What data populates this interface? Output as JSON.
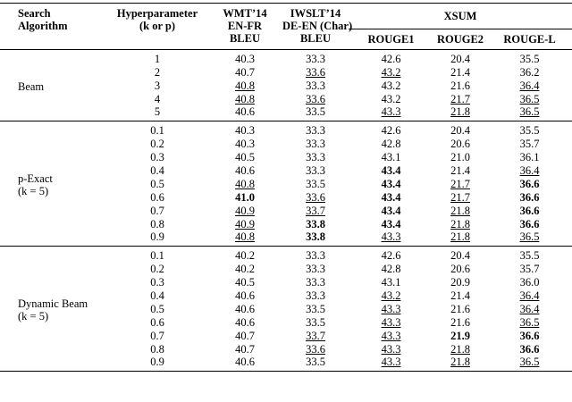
{
  "header": {
    "search_algorithm": [
      "Search",
      "Algorithm"
    ],
    "hyperparameter": [
      "Hyperparameter",
      "(k or p)"
    ],
    "wmt": [
      "WMT’14",
      "EN-FR",
      "BLEU"
    ],
    "iwslt": [
      "IWSLT’14",
      "DE-EN (Char)",
      "BLEU"
    ],
    "xsum": "XSUM",
    "metrics": [
      "ROUGE1",
      "ROUGE2",
      "ROUGE-L"
    ]
  },
  "groups": [
    {
      "name": [
        "Beam"
      ],
      "rows": [
        [
          "1",
          "40.3",
          "33.3",
          "42.6",
          "20.4",
          "35.5"
        ],
        [
          "2",
          "40.7",
          "33.6",
          "43.2",
          "21.4",
          "36.2"
        ],
        [
          "3",
          "40.8",
          "33.3",
          "43.2",
          "21.6",
          "36.4"
        ],
        [
          "4",
          "40.8",
          "33.6",
          "43.2",
          "21.7",
          "36.5"
        ],
        [
          "5",
          "40.6",
          "33.5",
          "43.3",
          "21.8",
          "36.5"
        ]
      ]
    },
    {
      "name": [
        "p-Exact",
        "(k = 5)"
      ],
      "rows": [
        [
          "0.1",
          "40.3",
          "33.3",
          "42.6",
          "20.4",
          "35.5"
        ],
        [
          "0.2",
          "40.3",
          "33.3",
          "42.8",
          "20.6",
          "35.7"
        ],
        [
          "0.3",
          "40.5",
          "33.3",
          "43.1",
          "21.0",
          "36.1"
        ],
        [
          "0.4",
          "40.6",
          "33.3",
          "43.4",
          "21.4",
          "36.4"
        ],
        [
          "0.5",
          "40.8",
          "33.5",
          "43.4",
          "21.7",
          "36.6"
        ],
        [
          "0.6",
          "41.0",
          "33.6",
          "43.4",
          "21.7",
          "36.6"
        ],
        [
          "0.7",
          "40.9",
          "33.7",
          "43.4",
          "21.8",
          "36.6"
        ],
        [
          "0.8",
          "40.9",
          "33.8",
          "43.4",
          "21.8",
          "36.6"
        ],
        [
          "0.9",
          "40.8",
          "33.8",
          "43.3",
          "21.8",
          "36.5"
        ]
      ]
    },
    {
      "name": [
        "Dynamic Beam",
        "(k = 5)"
      ],
      "rows": [
        [
          "0.1",
          "40.2",
          "33.3",
          "42.6",
          "20.4",
          "35.5"
        ],
        [
          "0.2",
          "40.2",
          "33.3",
          "42.8",
          "20.6",
          "35.7"
        ],
        [
          "0.3",
          "40.5",
          "33.3",
          "43.1",
          "20.9",
          "36.0"
        ],
        [
          "0.4",
          "40.6",
          "33.3",
          "43.2",
          "21.4",
          "36.4"
        ],
        [
          "0.5",
          "40.6",
          "33.5",
          "43.3",
          "21.6",
          "36.4"
        ],
        [
          "0.6",
          "40.6",
          "33.5",
          "43.3",
          "21.6",
          "36.5"
        ],
        [
          "0.7",
          "40.7",
          "33.7",
          "43.3",
          "21.9",
          "36.6"
        ],
        [
          "0.8",
          "40.7",
          "33.6",
          "43.3",
          "21.8",
          "36.6"
        ],
        [
          "0.9",
          "40.6",
          "33.5",
          "43.3",
          "21.8",
          "36.5"
        ]
      ]
    }
  ]
}
